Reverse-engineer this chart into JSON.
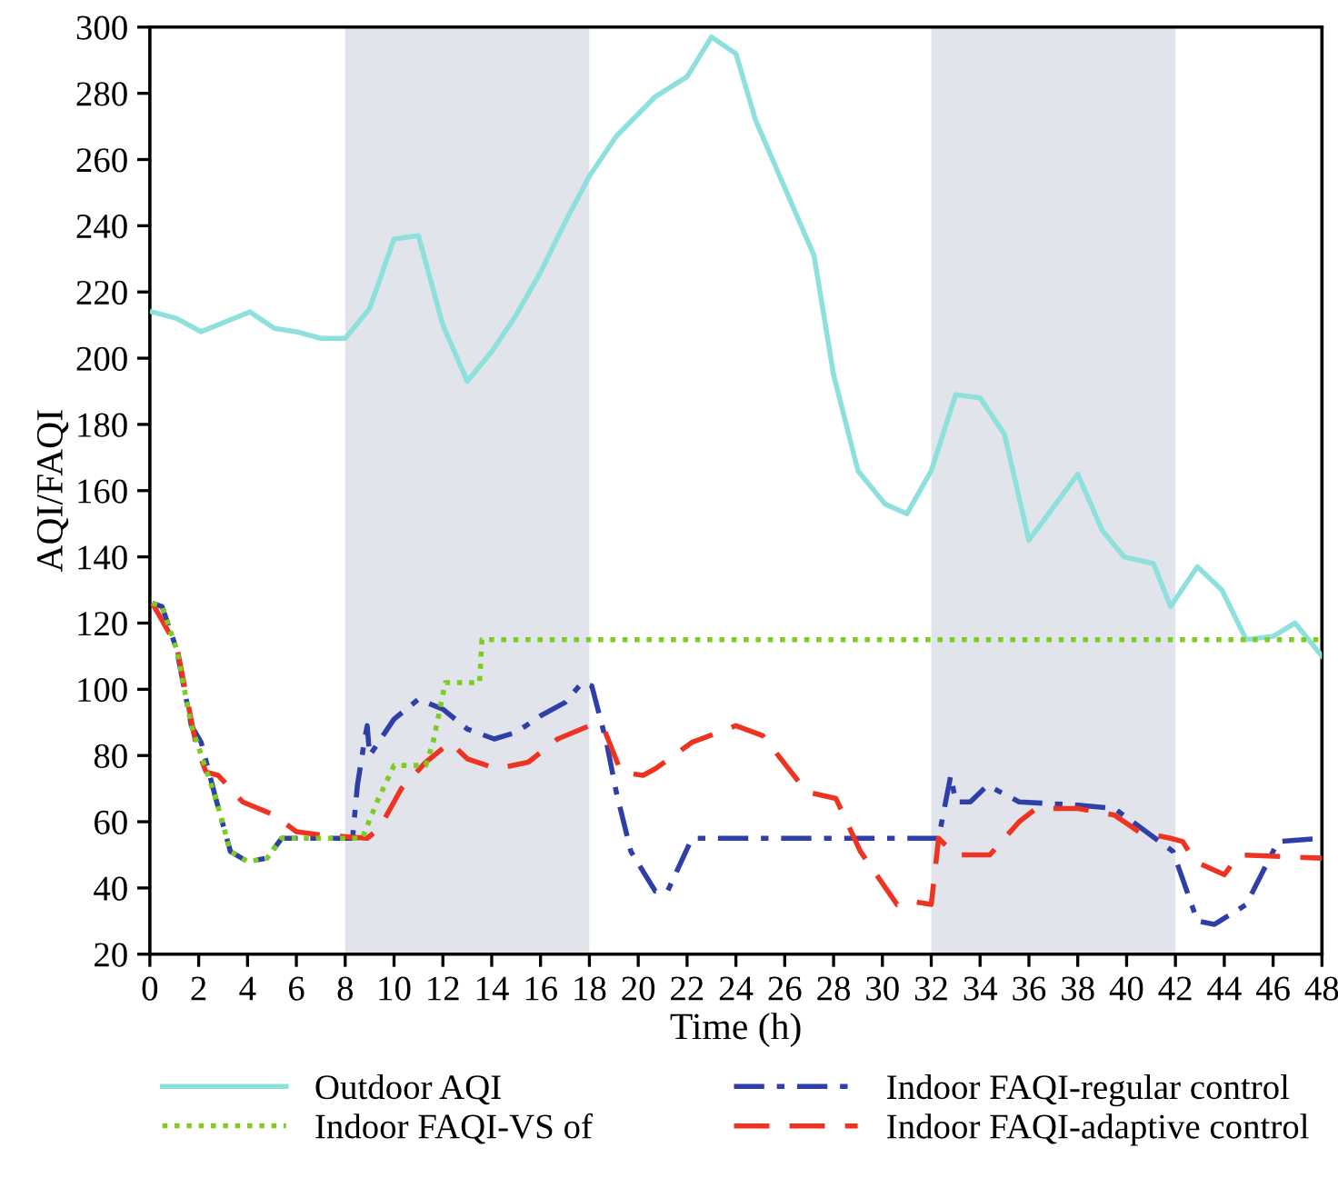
{
  "chart_data": {
    "type": "line",
    "xlabel": "Time (h)",
    "ylabel": "AQI/FAQI",
    "xlim": [
      0,
      48
    ],
    "ylim": [
      20,
      300
    ],
    "xticks": [
      0,
      2,
      4,
      6,
      8,
      10,
      12,
      14,
      16,
      18,
      20,
      22,
      24,
      26,
      28,
      30,
      32,
      34,
      36,
      38,
      40,
      42,
      44,
      46,
      48
    ],
    "yticks": [
      20,
      40,
      60,
      80,
      100,
      120,
      140,
      160,
      180,
      200,
      220,
      240,
      260,
      280,
      300
    ],
    "grid": false,
    "legend": "bottom",
    "marker": "none",
    "bands": [
      {
        "axis": "x",
        "from": 8,
        "to": 18,
        "color": "#e1e4ea"
      },
      {
        "axis": "x",
        "from": 32,
        "to": 42,
        "color": "#e1e4ea"
      }
    ],
    "series": [
      {
        "name": "Outdoor AQI",
        "color": "#8ee0dc",
        "line_style": "solid",
        "x": [
          0.1,
          1.1,
          2.1,
          3.1,
          4.1,
          5.1,
          6.0,
          7.0,
          8.0,
          9.0,
          10.0,
          11.0,
          12.0,
          13.0,
          14.0,
          15.0,
          16.0,
          17.0,
          18.0,
          19.1,
          20.7,
          22.0,
          23.0,
          24.0,
          24.8,
          27.2,
          28.0,
          29.0,
          30.1,
          31.0,
          32.0,
          33.0,
          34.0,
          35.0,
          36.0,
          38.0,
          39.0,
          39.9,
          41.1,
          41.8,
          42.9,
          43.9,
          44.9,
          46.0,
          46.9,
          48.0
        ],
        "values": [
          214,
          212,
          208,
          211,
          214,
          209,
          208,
          206,
          206,
          215,
          236,
          237,
          210,
          193,
          202,
          213,
          226,
          241,
          255,
          267,
          279,
          285,
          297,
          292,
          272,
          231,
          195,
          166,
          156,
          153,
          166,
          189,
          188,
          177,
          145,
          165,
          148,
          140,
          138,
          125,
          137,
          130,
          115,
          116,
          120,
          110
        ]
      },
      {
        "name": "Indoor FAQI-VS of",
        "color": "#7ccc22",
        "line_style": "dotted",
        "x": [
          0.1,
          0.5,
          1.1,
          1.7,
          2.7,
          3.3,
          4.0,
          4.8,
          5.4,
          8.7,
          9.3,
          10.0,
          11.3,
          11.6,
          12.1,
          13.5,
          13.6,
          48.0
        ],
        "values": [
          126,
          125,
          112,
          89,
          67,
          51,
          48,
          49,
          55,
          55,
          66,
          77,
          77,
          84,
          102,
          102,
          115,
          115
        ]
      },
      {
        "name": "Indoor FAQI-regular control",
        "color": "#2e3fa8",
        "line_style": "dashdot",
        "x": [
          0.1,
          0.5,
          1.1,
          1.7,
          2.1,
          2.7,
          3.3,
          4.0,
          4.8,
          5.4,
          8.3,
          8.5,
          8.8,
          8.9,
          9.0,
          10.0,
          11.0,
          12.0,
          13.0,
          14.1,
          15.0,
          16.0,
          17.0,
          17.7,
          18.1,
          18.7,
          19.1,
          19.7,
          20.7,
          21.2,
          22.2,
          32.3,
          32.8,
          33.0,
          33.6,
          34.3,
          35.6,
          38.0,
          39.5,
          40.8,
          41.9,
          42.9,
          43.6,
          44.9,
          46.2,
          48.0
        ],
        "values": [
          126,
          125,
          112,
          89,
          84,
          67,
          51,
          48,
          49,
          55,
          55,
          71,
          85,
          89,
          80,
          91,
          97,
          94,
          88,
          85,
          87,
          92,
          96,
          102,
          101,
          84,
          69,
          51,
          39,
          39,
          55,
          55,
          74,
          66,
          66,
          71,
          66,
          65,
          64,
          57,
          51,
          30,
          29,
          35,
          54,
          55
        ]
      },
      {
        "name": "Indoor FAQI-adaptive control",
        "color": "#ee3322",
        "line_style": "dashed",
        "x": [
          0.1,
          1.1,
          1.9,
          2.3,
          2.8,
          3.8,
          5.1,
          6.0,
          7.0,
          8.9,
          9.4,
          10.3,
          11.3,
          12.3,
          13.0,
          14.2,
          15.5,
          16.7,
          18.0,
          18.6,
          19.3,
          20.2,
          20.7,
          22.2,
          24.0,
          25.1,
          26.9,
          28.1,
          29.1,
          30.6,
          31.2,
          32.0,
          32.3,
          33.0,
          34.4,
          35.6,
          36.3,
          38.0,
          39.5,
          40.5,
          41.8,
          42.3,
          42.8,
          44.0,
          44.6,
          48.0
        ],
        "values": [
          126,
          113,
          83,
          75,
          74,
          66,
          62,
          57,
          56,
          55,
          58,
          70,
          78,
          84,
          79,
          76,
          78,
          85,
          89,
          88,
          75,
          74,
          76,
          84,
          89,
          86,
          69,
          67,
          51,
          35,
          36,
          35,
          55,
          50,
          50,
          60,
          64,
          64,
          62,
          57,
          55,
          54,
          48,
          44,
          50,
          49
        ]
      }
    ]
  }
}
